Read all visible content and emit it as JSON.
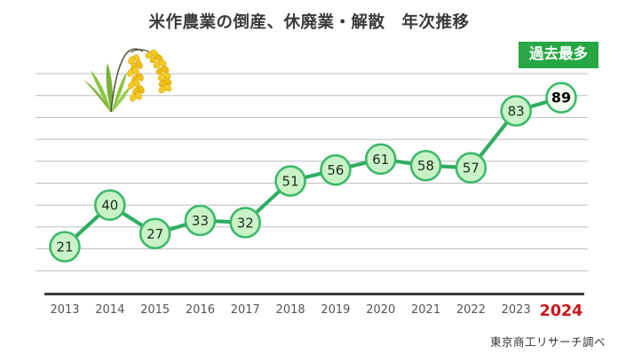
{
  "title": "米作農業の倒産、休廃業・解散　年次推移",
  "badge": {
    "label": "過去最多"
  },
  "source_note": "東京商工リサーチ調べ",
  "colors": {
    "title_color": "#3a3a3a",
    "badge_bg": "#27a845",
    "badge_fg": "#ffffff",
    "line": "#2fae62",
    "marker_fill": "#c9f2c6",
    "marker_stroke": "#3cb96a",
    "marker_fill_highlight": "#f2fcf0",
    "value_label": "#1e2b1e",
    "value_label_highlight": "#000000",
    "grid": "#bdbdbd",
    "axis": "#3b3b3b",
    "year_label": "#555555",
    "year_label_highlight": "#c9171e",
    "source_color": "#333333"
  },
  "chart_data": {
    "type": "line",
    "title": "米作農業の倒産、休廃業・解散　年次推移",
    "categories": [
      "2013",
      "2014",
      "2015",
      "2016",
      "2017",
      "2018",
      "2019",
      "2020",
      "2021",
      "2022",
      "2023",
      "2024"
    ],
    "values": [
      21,
      40,
      27,
      33,
      32,
      51,
      56,
      61,
      58,
      57,
      83,
      89
    ],
    "xlabel": "",
    "ylabel": "",
    "ylim": [
      0,
      100
    ],
    "grid": "horizontal",
    "grid_interval": 10,
    "legend": "none",
    "highlight_index": 11,
    "annotation": "過去最多"
  }
}
